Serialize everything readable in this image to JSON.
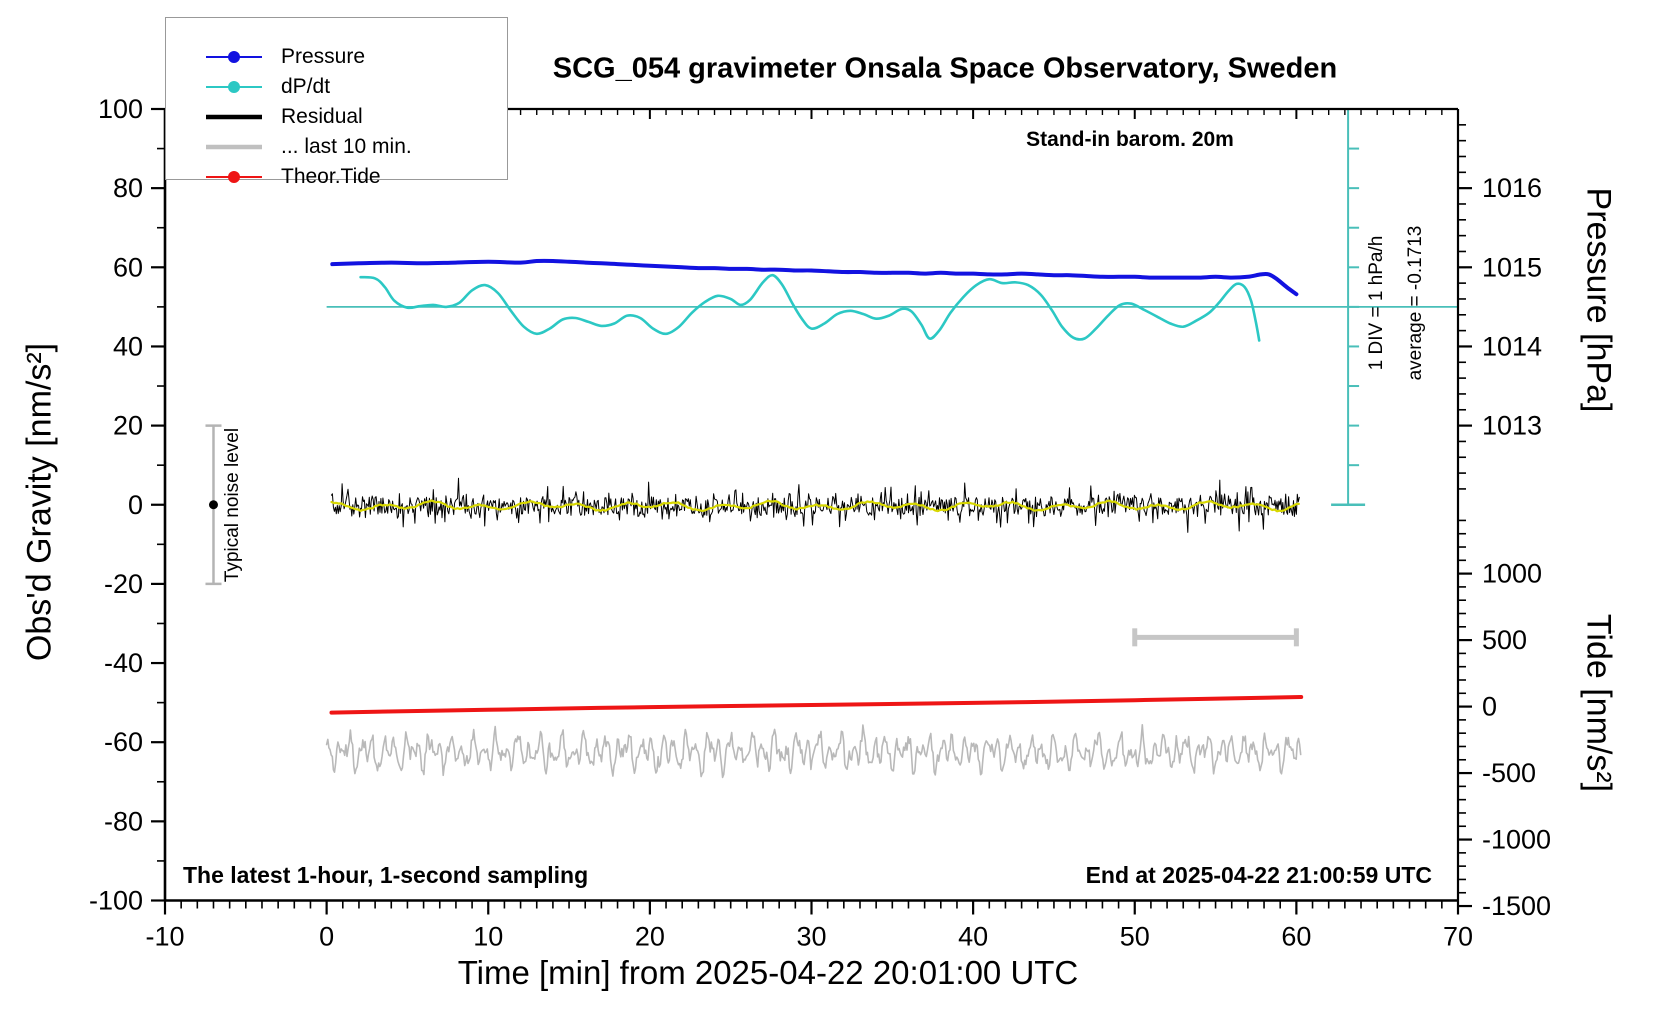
{
  "title": "SCG_054 gravimeter Onsala Space Observatory, Sweden",
  "annotations": {
    "standin": "Stand-in barom. 20m",
    "div_note": "1 DIV = 1 hPa/h",
    "average_note": "average = -0.1713",
    "noise_label": "Typical noise level",
    "sampling_note": "The latest 1-hour, 1-second sampling",
    "end_note": "End at 2025-04-22 21:00:59 UTC"
  },
  "legend": {
    "items": [
      {
        "label": "Pressure",
        "color": "#1212e0",
        "thick": 2,
        "marker": true
      },
      {
        "label": "dP/dt",
        "color": "#2cc8c4",
        "thick": 2,
        "marker": true
      },
      {
        "label": "Residual",
        "color": "#000000",
        "thick": 4.5,
        "marker": false
      },
      {
        "label": "... last 10 min.",
        "color": "#c0c0c0",
        "thick": 4.5,
        "marker": false
      },
      {
        "label": "Theor.Tide",
        "color": "#ee1515",
        "thick": 2,
        "marker": true
      }
    ]
  },
  "chart_data": {
    "type": "line",
    "title": "SCG_054 gravimeter Onsala Space Observatory, Sweden",
    "xlabel": "Time [min] from 2025-04-22 20:01:00 UTC",
    "x_range": [
      -10,
      70
    ],
    "x_major_step": 10,
    "x_minor_step": 1,
    "grid": false,
    "legend_position": "top-left",
    "gravity_axis": {
      "label": "Obs'd Gravity [nm/s²]",
      "range": [
        -100,
        100
      ],
      "major_ticks": [
        -100,
        -80,
        -60,
        -40,
        -20,
        0,
        20,
        40,
        60,
        80,
        100
      ],
      "minor_step": 10
    },
    "pressure_axis": {
      "label": "Pressure [hPa]",
      "major_ticks": [
        1016,
        1015,
        1014,
        1013
      ],
      "minor_step": 0.2,
      "gravity_of_1015": 60,
      "gravity_units_per_hpa": 20
    },
    "tide_axis": {
      "label": "Tide [nm/s²]",
      "major_ticks": [
        1000,
        500,
        0,
        -500,
        -1000,
        -1500
      ],
      "minor_step": 100,
      "gravity_of_zero": -51,
      "gravity_units_per_500": 16.8
    },
    "series": [
      {
        "name": "Pressure",
        "color": "#1212e0",
        "width": 4,
        "unit": "hPa",
        "points": [
          [
            0.35,
            1015.04
          ],
          [
            2,
            1015.05
          ],
          [
            4,
            1015.06
          ],
          [
            6,
            1015.05
          ],
          [
            8,
            1015.06
          ],
          [
            10,
            1015.07
          ],
          [
            12,
            1015.06
          ],
          [
            13,
            1015.08
          ],
          [
            14,
            1015.08
          ],
          [
            15,
            1015.07
          ],
          [
            16,
            1015.06
          ],
          [
            17,
            1015.05
          ],
          [
            18,
            1015.04
          ],
          [
            19,
            1015.03
          ],
          [
            20,
            1015.02
          ],
          [
            21,
            1015.01
          ],
          [
            22,
            1015.0
          ],
          [
            23,
            1014.99
          ],
          [
            24,
            1014.99
          ],
          [
            25,
            1014.98
          ],
          [
            26,
            1014.98
          ],
          [
            27,
            1014.97
          ],
          [
            28,
            1014.97
          ],
          [
            29,
            1014.96
          ],
          [
            30,
            1014.96
          ],
          [
            31,
            1014.95
          ],
          [
            32,
            1014.94
          ],
          [
            33,
            1014.94
          ],
          [
            34,
            1014.93
          ],
          [
            35,
            1014.93
          ],
          [
            36,
            1014.93
          ],
          [
            37,
            1014.92
          ],
          [
            38,
            1014.93
          ],
          [
            39,
            1014.92
          ],
          [
            40,
            1014.92
          ],
          [
            41,
            1014.91
          ],
          [
            42,
            1014.91
          ],
          [
            43,
            1014.92
          ],
          [
            44,
            1014.91
          ],
          [
            45,
            1014.9
          ],
          [
            46,
            1014.9
          ],
          [
            47,
            1014.89
          ],
          [
            48,
            1014.88
          ],
          [
            49,
            1014.88
          ],
          [
            50,
            1014.88
          ],
          [
            51,
            1014.87
          ],
          [
            52,
            1014.87
          ],
          [
            53,
            1014.87
          ],
          [
            54,
            1014.87
          ],
          [
            55,
            1014.88
          ],
          [
            56,
            1014.87
          ],
          [
            57,
            1014.88
          ],
          [
            57.8,
            1014.91
          ],
          [
            58.3,
            1014.91
          ],
          [
            58.8,
            1014.85
          ],
          [
            59.4,
            1014.75
          ],
          [
            60,
            1014.66
          ]
        ]
      },
      {
        "name": "dP/dt",
        "color": "#2cc8c4",
        "width": 2.6,
        "unit": "hPa/h",
        "average": -0.1713,
        "points": [
          [
            2.1,
            0.75
          ],
          [
            3,
            0.72
          ],
          [
            3.6,
            0.5
          ],
          [
            4.2,
            0.15
          ],
          [
            5,
            -0.02
          ],
          [
            5.8,
            0.02
          ],
          [
            6.6,
            0.05
          ],
          [
            7.4,
            0.0
          ],
          [
            8.2,
            0.1
          ],
          [
            9,
            0.42
          ],
          [
            9.8,
            0.55
          ],
          [
            10.6,
            0.35
          ],
          [
            11.4,
            -0.1
          ],
          [
            12.2,
            -0.5
          ],
          [
            13,
            -0.68
          ],
          [
            13.8,
            -0.55
          ],
          [
            14.6,
            -0.32
          ],
          [
            15.4,
            -0.28
          ],
          [
            16.2,
            -0.38
          ],
          [
            17,
            -0.48
          ],
          [
            17.8,
            -0.42
          ],
          [
            18.6,
            -0.22
          ],
          [
            19.4,
            -0.28
          ],
          [
            20.2,
            -0.55
          ],
          [
            21,
            -0.68
          ],
          [
            21.8,
            -0.5
          ],
          [
            22.6,
            -0.15
          ],
          [
            23.4,
            0.12
          ],
          [
            24.2,
            0.28
          ],
          [
            25,
            0.2
          ],
          [
            25.6,
            0.05
          ],
          [
            26.2,
            0.18
          ],
          [
            27,
            0.62
          ],
          [
            27.6,
            0.8
          ],
          [
            28.2,
            0.55
          ],
          [
            28.8,
            0.1
          ],
          [
            29.4,
            -0.3
          ],
          [
            30,
            -0.55
          ],
          [
            30.8,
            -0.42
          ],
          [
            31.6,
            -0.18
          ],
          [
            32.4,
            -0.1
          ],
          [
            33.2,
            -0.18
          ],
          [
            34,
            -0.3
          ],
          [
            34.8,
            -0.22
          ],
          [
            35.6,
            -0.05
          ],
          [
            36.2,
            -0.12
          ],
          [
            36.8,
            -0.45
          ],
          [
            37.3,
            -0.8
          ],
          [
            37.9,
            -0.6
          ],
          [
            38.6,
            -0.15
          ],
          [
            39.4,
            0.25
          ],
          [
            40.2,
            0.55
          ],
          [
            41,
            0.7
          ],
          [
            41.8,
            0.6
          ],
          [
            42.6,
            0.62
          ],
          [
            43.4,
            0.55
          ],
          [
            44.2,
            0.3
          ],
          [
            44.9,
            -0.1
          ],
          [
            45.5,
            -0.5
          ],
          [
            46.2,
            -0.78
          ],
          [
            46.9,
            -0.8
          ],
          [
            47.6,
            -0.55
          ],
          [
            48.4,
            -0.2
          ],
          [
            49.1,
            0.05
          ],
          [
            49.8,
            0.08
          ],
          [
            50.6,
            -0.08
          ],
          [
            51.4,
            -0.25
          ],
          [
            52.2,
            -0.42
          ],
          [
            53,
            -0.5
          ],
          [
            53.8,
            -0.35
          ],
          [
            54.6,
            -0.15
          ],
          [
            55.2,
            0.1
          ],
          [
            55.8,
            0.4
          ],
          [
            56.3,
            0.58
          ],
          [
            56.8,
            0.5
          ],
          [
            57.2,
            0.15
          ],
          [
            57.5,
            -0.4
          ],
          [
            57.7,
            -0.85
          ]
        ]
      },
      {
        "name": "Residual",
        "color": "#000000",
        "width": 1,
        "unit": "nm/s2 gravity",
        "x_range": [
          0.3,
          60.2
        ],
        "mean": -0.3,
        "noise_base": 2.2,
        "spike_amplitude": 5.5,
        "step_min": 0.06
      },
      {
        "name": "Residual smoothed",
        "color": "#d8d800",
        "width": 2.2,
        "unit": "nm/s2 gravity",
        "x_range": [
          0.3,
          60.2
        ],
        "mean": -0.3,
        "amplitude": 1.4,
        "step_min": 0.15
      },
      {
        "name": "... last 10 min.",
        "color": "#b9b9b9",
        "width": 1.6,
        "unit": "nm/s2 gravity",
        "x_range": [
          0,
          60.3
        ],
        "center": -62.5,
        "amplitude": 4.6,
        "step_min": 0.07
      },
      {
        "name": "Theor.Tide",
        "color": "#ee1515",
        "width": 4,
        "unit": "nm/s2 tide",
        "points": [
          [
            0.3,
            -45
          ],
          [
            10,
            -24
          ],
          [
            20,
            -4
          ],
          [
            30,
            12
          ],
          [
            40,
            28
          ],
          [
            50,
            48
          ],
          [
            60.3,
            72
          ]
        ]
      }
    ],
    "markers": {
      "noise_bar": {
        "x_min": -7,
        "gravity_from": 20,
        "gravity_to": -20,
        "dot_at": 0,
        "color": "#b4b4b4"
      },
      "last10_bracket": {
        "x_from": 50,
        "x_to": 60,
        "gravity_y": -33.5,
        "color": "#c6c6c6"
      },
      "dpdt_zero_line": {
        "gravity_y": 50,
        "x_from": 0,
        "x_to": 70,
        "color": "#49bfb9"
      },
      "dpdt_scale_bar": {
        "x_min": 63.2,
        "gravity_from": 100,
        "gravity_to": 0,
        "divisions": 10,
        "color": "#49bfb9"
      }
    }
  }
}
